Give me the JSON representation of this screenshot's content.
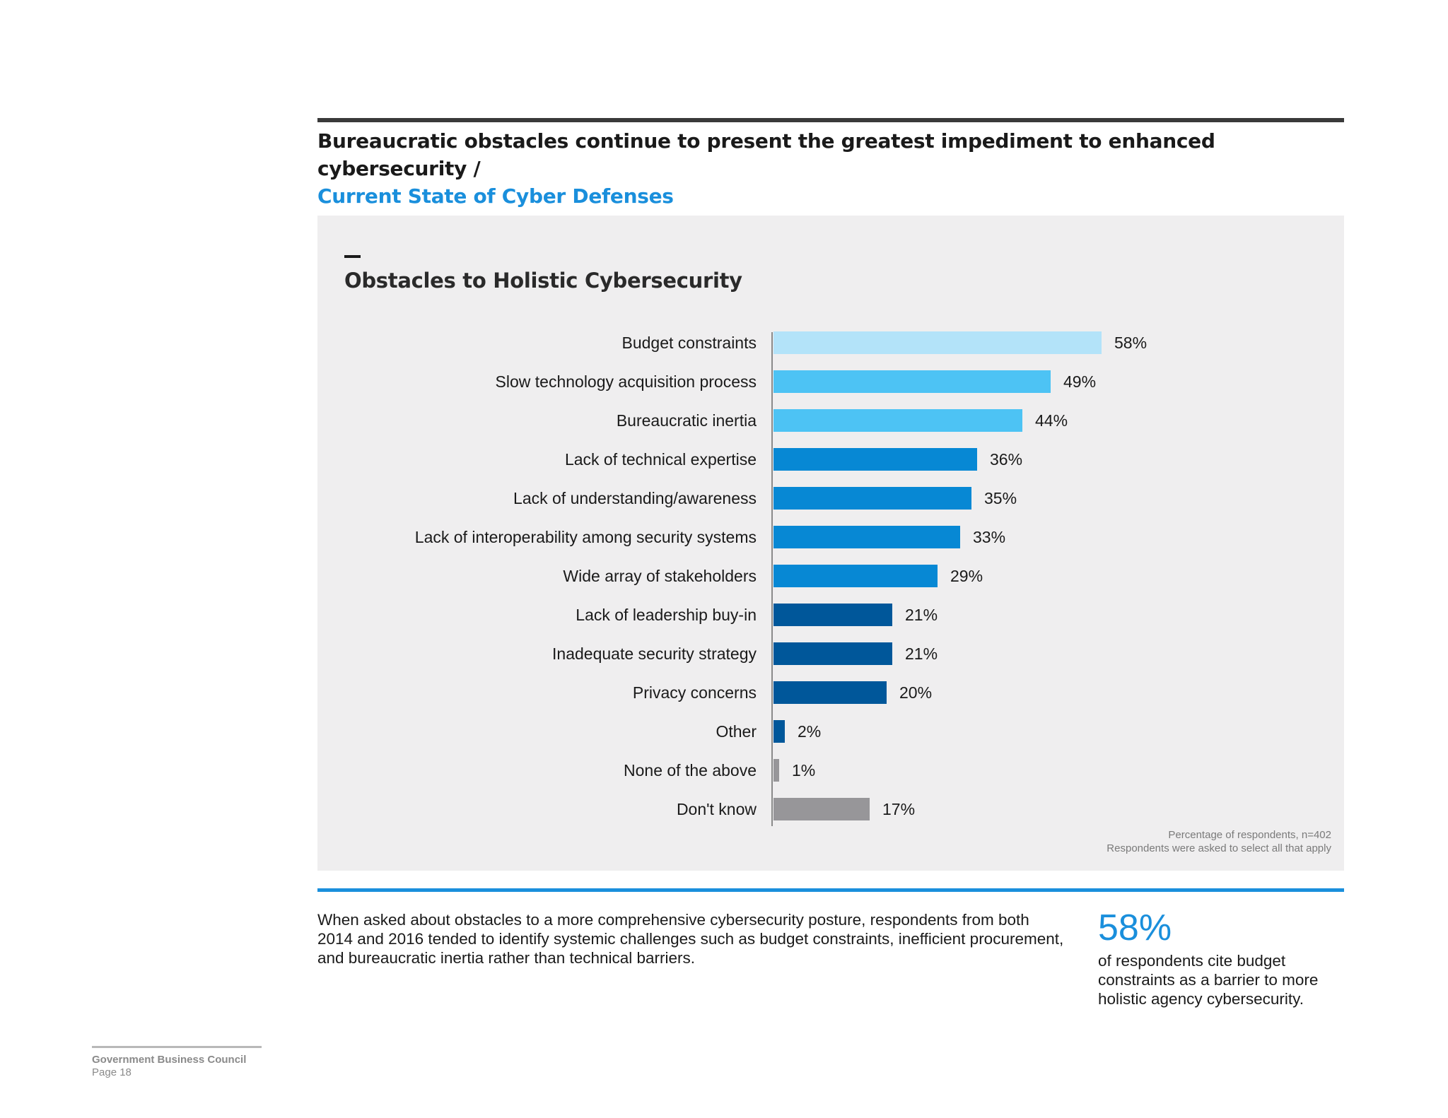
{
  "header": {
    "headline": "Bureaucratic obstacles continue to present the greatest impediment to enhanced cybersecurity /",
    "subheadline": "Current State of Cyber Defenses"
  },
  "chart_data": {
    "type": "bar",
    "orientation": "horizontal",
    "title": "Obstacles to Holistic Cybersecurity",
    "categories": [
      "Budget constraints",
      "Slow technology acquisition process",
      "Bureaucratic inertia",
      "Lack of technical expertise",
      "Lack of understanding/awareness",
      "Lack of interoperability among security systems",
      "Wide array of stakeholders",
      "Lack of leadership buy-in",
      "Inadequate security strategy",
      "Privacy concerns",
      "Other",
      "None of the above",
      "Don't know"
    ],
    "values": [
      58,
      49,
      44,
      36,
      35,
      33,
      29,
      21,
      21,
      20,
      2,
      1,
      17
    ],
    "value_labels": [
      "58%",
      "49%",
      "44%",
      "36%",
      "35%",
      "33%",
      "29%",
      "21%",
      "21%",
      "20%",
      "2%",
      "1%",
      "17%"
    ],
    "colors": [
      "#b3e3f9",
      "#4dc3f4",
      "#4dc3f4",
      "#0788d4",
      "#0788d4",
      "#0788d4",
      "#0788d4",
      "#00579a",
      "#00579a",
      "#00579a",
      "#00579a",
      "#979699",
      "#979699"
    ],
    "xlim": [
      0,
      100
    ],
    "unit": "%",
    "grid": false,
    "legend": "none"
  },
  "chart_note": {
    "line1": "Percentage of respondents, n=402",
    "line2": "Respondents were asked to select all that apply"
  },
  "summary": {
    "text": "When asked about obstacles to a more comprehensive cybersecurity posture, respondents from both 2014 and 2016 tended to identify systemic challenges such as budget constraints, inefficient procurement, and bureaucratic inertia rather than technical barriers.",
    "stat_value": "58%",
    "stat_text": "of respondents cite budget constraints as a barrier to more holistic agency cybersecurity."
  },
  "footer": {
    "org": "Government Business Council",
    "page": "Page 18"
  },
  "colors": {
    "accent": "#1a8fdc",
    "panel": "#efeeef",
    "rule": "#3a3a3a"
  }
}
